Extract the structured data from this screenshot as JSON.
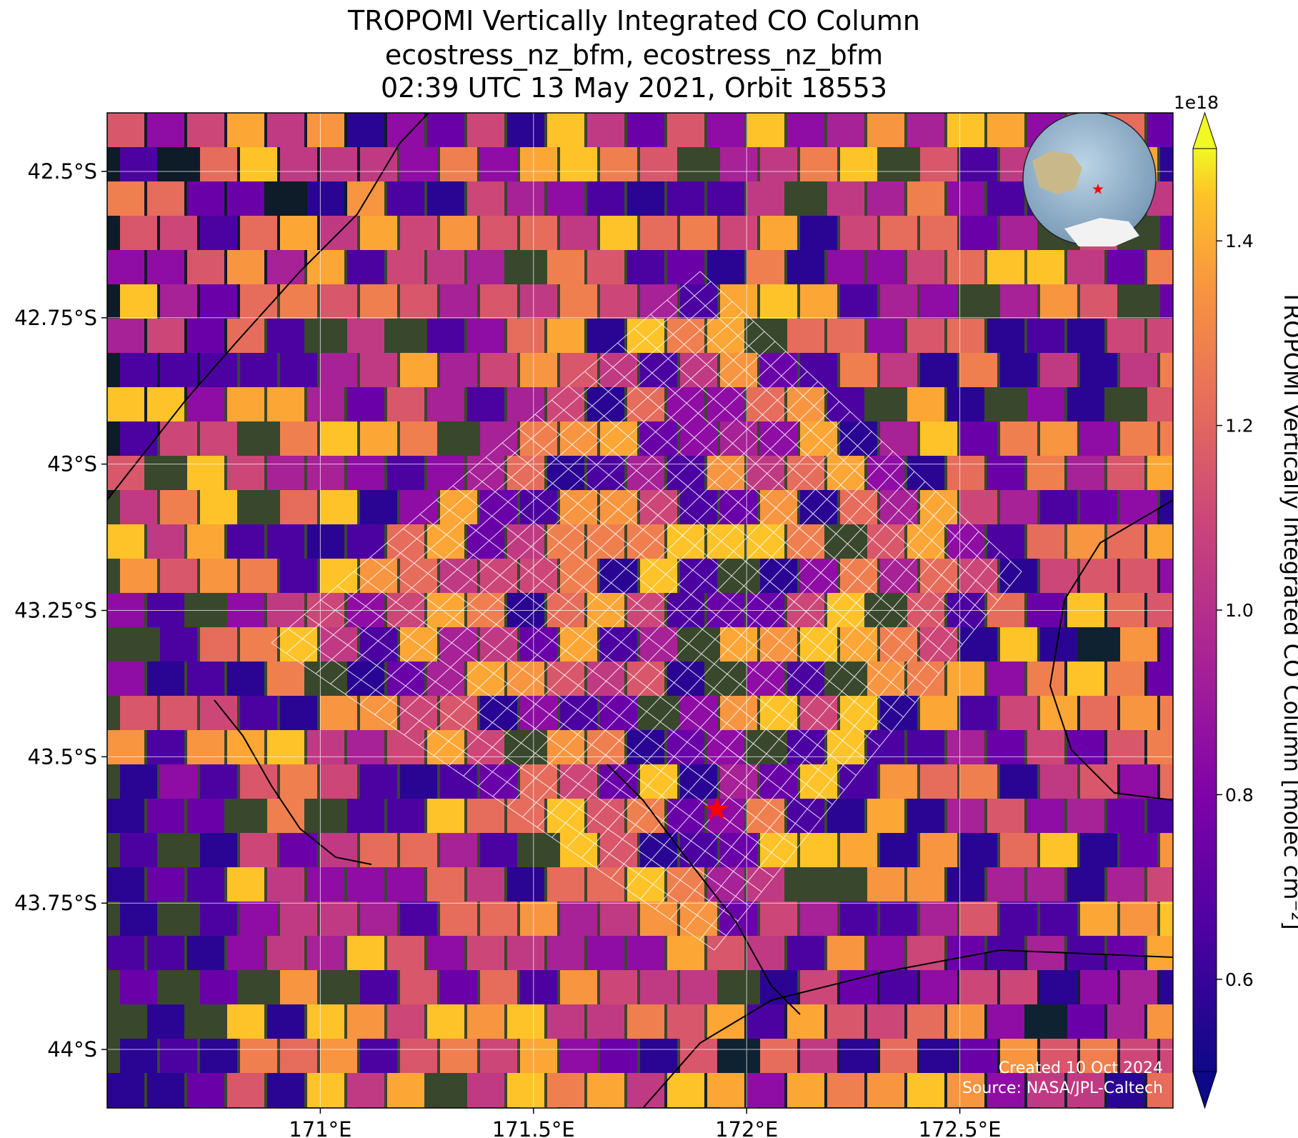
{
  "title": {
    "line1": "TROPOMI Vertically Integrated CO Column",
    "line2": "ecostress_nz_bfm, ecostress_nz_bfm",
    "line3": "02:39 UTC 13 May 2021, Orbit 18553"
  },
  "map": {
    "lon_range": [
      170.5,
      173.0
    ],
    "lat_range": [
      -44.1,
      -42.4
    ],
    "lat_ticks": [
      {
        "value": -42.5,
        "label": "42.5°S"
      },
      {
        "value": -42.75,
        "label": "42.75°S"
      },
      {
        "value": -43.0,
        "label": "43°S"
      },
      {
        "value": -43.25,
        "label": "43.25°S"
      },
      {
        "value": -43.5,
        "label": "43.5°S"
      },
      {
        "value": -43.75,
        "label": "43.75°S"
      },
      {
        "value": -44.0,
        "label": "44°S"
      }
    ],
    "lon_ticks": [
      {
        "value": 171.0,
        "label": "171°E"
      },
      {
        "value": 171.5,
        "label": "171.5°E"
      },
      {
        "value": 172.0,
        "label": "172°E"
      },
      {
        "value": 172.5,
        "label": "172.5°E"
      }
    ],
    "target_marker": {
      "lon": 171.93,
      "lat": -43.59,
      "color": "#ff0000",
      "icon": "star-icon"
    },
    "gridlines": true,
    "basemap": "satellite imagery",
    "inset_globe": {
      "placement": "top-right",
      "icon": "globe-icon",
      "marker_color": "#ff0000"
    }
  },
  "colorbar": {
    "scale_label": "1e18",
    "label": "TROPOMI Vertically Integrated CO Column [molec cm⁻²]",
    "range": [
      0.5,
      1.5
    ],
    "ticks": [
      {
        "value": 0.6,
        "label": "0.6"
      },
      {
        "value": 0.8,
        "label": "0.8"
      },
      {
        "value": 1.0,
        "label": "1.0"
      },
      {
        "value": 1.2,
        "label": "1.2"
      },
      {
        "value": 1.4,
        "label": "1.4"
      }
    ],
    "colormap": "plasma",
    "extend": "both"
  },
  "credit": {
    "created": "Created 10 Oct 2024",
    "source": "Source: NASA/JPL-Caltech"
  }
}
